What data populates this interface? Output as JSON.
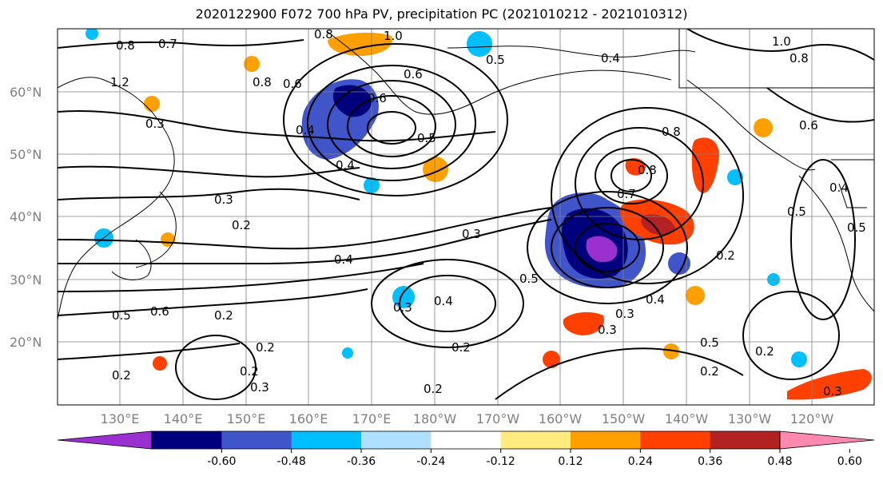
{
  "title": "2020122900 F072 700 hPa PV, precipitation PC (2021010212 - 2021010312)",
  "lat_labels": [
    "60°N",
    "50°N",
    "40°N",
    "30°N",
    "20°N"
  ],
  "lon_labels": [
    "130°E",
    "140°E",
    "150°E",
    "160°E",
    "170°E",
    "180°W",
    "170°W",
    "160°W",
    "150°W",
    "140°W",
    "130°W",
    "120°W"
  ],
  "colorbar": {
    "ticks": [
      "-0.60",
      "-0.48",
      "-0.36",
      "-0.24",
      "-0.12",
      "0.12",
      "0.24",
      "0.36",
      "0.48",
      "0.60"
    ],
    "colors": [
      "#9b30d0",
      "#00007f",
      "#3f55c9",
      "#00bfff",
      "#b0e0ff",
      "#ffffff",
      "#ffeb80",
      "#ffa000",
      "#ff4000",
      "#b22222",
      "#ff88b0"
    ]
  },
  "pv_contour_labels": [
    "0.8",
    "0.7",
    "0.8",
    "1.0",
    "1.2",
    "0.6",
    "0.8",
    "0.6",
    "0.4",
    "0.3",
    "0.2",
    "0.4",
    "0.5",
    "0.6",
    "0.2",
    "0.3",
    "0.4",
    "0.3",
    "0.2",
    "0.2",
    "0.3",
    "0.2",
    "0.2",
    "0.3",
    "0.4",
    "0.3",
    "0.2",
    "0.5",
    "0.2",
    "0.2",
    "0.3",
    "0.4",
    "0.5",
    "0.8",
    "0.8",
    "0.7",
    "0.5",
    "0.4",
    "1.0",
    "0.8",
    "0.6",
    "0.2",
    "0.3",
    "0.4",
    "0.6",
    "0.5",
    "0.5",
    "0.5"
  ],
  "colors": {
    "coast": "#000000",
    "grid": "#808080",
    "contour": "#000000"
  }
}
